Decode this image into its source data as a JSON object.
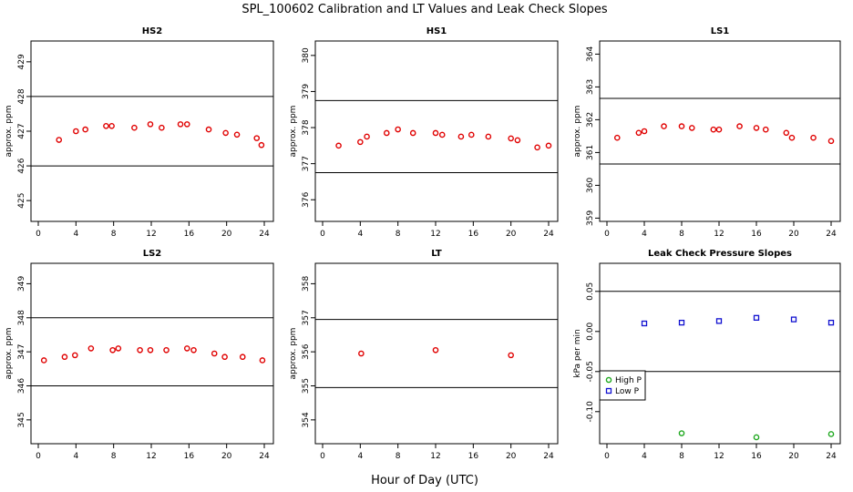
{
  "title": "SPL_100602  Calibration and LT Values and Leak Check Slopes",
  "xlabel": "Hour of Day (UTC)",
  "colors": {
    "red": "#e00000",
    "green": "#1fa81f",
    "blue": "#1010d0",
    "line": "#000000"
  },
  "chart_data": [
    {
      "type": "scatter",
      "title": "HS2",
      "ylabel": "approx. ppm",
      "xlim": [
        0,
        24
      ],
      "ylim": [
        424.4,
        429.6
      ],
      "xticks": [
        0,
        4,
        8,
        12,
        16,
        20,
        24
      ],
      "yticks": [
        425,
        426,
        427,
        428,
        429
      ],
      "hlines": [
        428,
        426
      ],
      "series": [
        {
          "name": "",
          "color": "red",
          "x": [
            2.2,
            4.0,
            5.0,
            7.2,
            7.8,
            10.2,
            11.9,
            13.1,
            15.1,
            15.8,
            18.1,
            19.9,
            21.1,
            23.2,
            23.7
          ],
          "y": [
            426.75,
            427.0,
            427.05,
            427.15,
            427.15,
            427.1,
            427.2,
            427.1,
            427.2,
            427.2,
            427.05,
            426.95,
            426.9,
            426.8,
            426.6
          ]
        }
      ]
    },
    {
      "type": "scatter",
      "title": "HS1",
      "ylabel": "approx. ppm",
      "xlim": [
        0,
        24
      ],
      "ylim": [
        375.4,
        380.4
      ],
      "xticks": [
        0,
        4,
        8,
        12,
        16,
        20,
        24
      ],
      "yticks": [
        376,
        377,
        378,
        379,
        380
      ],
      "hlines": [
        378.75,
        376.75
      ],
      "series": [
        {
          "name": "",
          "color": "red",
          "x": [
            1.7,
            4.0,
            4.7,
            6.8,
            8.0,
            9.6,
            12.0,
            12.7,
            14.7,
            15.8,
            17.6,
            20.0,
            20.7,
            22.8,
            24.0
          ],
          "y": [
            377.5,
            377.6,
            377.75,
            377.85,
            377.95,
            377.85,
            377.85,
            377.8,
            377.75,
            377.8,
            377.75,
            377.7,
            377.65,
            377.45,
            377.5
          ]
        }
      ]
    },
    {
      "type": "scatter",
      "title": "LS1",
      "ylabel": "approx. ppm",
      "xlim": [
        0,
        24
      ],
      "ylim": [
        358.9,
        364.4
      ],
      "xticks": [
        0,
        4,
        8,
        12,
        16,
        20,
        24
      ],
      "yticks": [
        359,
        360,
        361,
        362,
        363,
        364
      ],
      "hlines": [
        362.65,
        360.65
      ],
      "series": [
        {
          "name": "",
          "color": "red",
          "x": [
            1.1,
            3.4,
            4.0,
            6.1,
            8.0,
            9.1,
            11.4,
            12.0,
            14.2,
            16.0,
            17.0,
            19.2,
            19.8,
            22.1,
            24.0
          ],
          "y": [
            361.45,
            361.6,
            361.65,
            361.8,
            361.8,
            361.75,
            361.7,
            361.7,
            361.8,
            361.75,
            361.7,
            361.6,
            361.45,
            361.45,
            361.35
          ]
        }
      ]
    },
    {
      "type": "scatter",
      "title": "LS2",
      "ylabel": "approx. ppm",
      "xlim": [
        0,
        24
      ],
      "ylim": [
        344.3,
        349.6
      ],
      "xticks": [
        0,
        4,
        8,
        12,
        16,
        20,
        24
      ],
      "yticks": [
        345,
        346,
        347,
        348,
        349
      ],
      "hlines": [
        348,
        346
      ],
      "series": [
        {
          "name": "",
          "color": "red",
          "x": [
            0.6,
            2.8,
            3.9,
            5.6,
            7.9,
            8.5,
            10.8,
            11.9,
            13.6,
            15.8,
            16.5,
            18.7,
            19.8,
            21.7,
            23.8
          ],
          "y": [
            346.75,
            346.85,
            346.9,
            347.1,
            347.05,
            347.1,
            347.05,
            347.05,
            347.05,
            347.1,
            347.05,
            346.95,
            346.85,
            346.85,
            346.75
          ]
        }
      ]
    },
    {
      "type": "scatter",
      "title": "LT",
      "ylabel": "approx. ppm",
      "xlim": [
        0,
        24
      ],
      "ylim": [
        353.3,
        358.6
      ],
      "xticks": [
        0,
        4,
        8,
        12,
        16,
        20,
        24
      ],
      "yticks": [
        354,
        355,
        356,
        357,
        358
      ],
      "hlines": [
        356.95,
        354.95
      ],
      "series": [
        {
          "name": "",
          "color": "red",
          "x": [
            4.1,
            12.0,
            20.0
          ],
          "y": [
            355.95,
            356.05,
            355.9
          ]
        }
      ]
    },
    {
      "type": "scatter",
      "title": "Leak Check Pressure Slopes",
      "ylabel": "kPa per min",
      "xlim": [
        0,
        24
      ],
      "ylim": [
        -0.14,
        0.085
      ],
      "xticks": [
        0,
        4,
        8,
        12,
        16,
        20,
        24
      ],
      "yticks": [
        -0.1,
        -0.05,
        0.0,
        0.05
      ],
      "ytick_labels": [
        "-0.10",
        "-0.05",
        "0.00",
        "0.05"
      ],
      "hlines": [
        0.05,
        -0.05
      ],
      "legend": {
        "position": "bottom-left"
      },
      "series": [
        {
          "name": "High P",
          "color": "green",
          "x": [
            8,
            16,
            24
          ],
          "y": [
            -0.127,
            -0.132,
            -0.128
          ]
        },
        {
          "name": "Low P",
          "color": "blue",
          "x": [
            4,
            8,
            12,
            16,
            20,
            24
          ],
          "y": [
            0.01,
            0.011,
            0.013,
            0.017,
            0.015,
            0.011
          ]
        }
      ]
    }
  ]
}
